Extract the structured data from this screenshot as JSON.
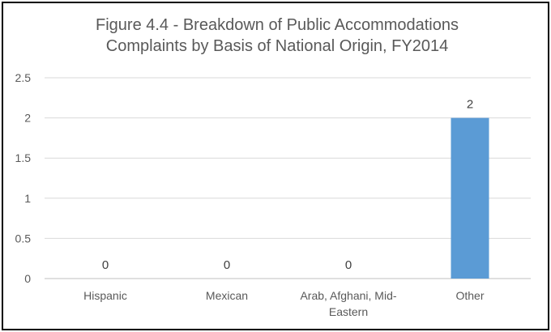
{
  "chart_data": {
    "type": "bar",
    "title": "Figure 4.4 - Breakdown of Public Accommodations Complaints by Basis of National Origin, FY2014",
    "title_lines": [
      "Figure 4.4 - Breakdown of Public Accommodations",
      "Complaints by Basis of National Origin, FY2014"
    ],
    "categories": [
      "Hispanic",
      "Mexican",
      "Arab, Afghani, Mid-Eastern",
      "Other"
    ],
    "category_lines": [
      [
        "Hispanic"
      ],
      [
        "Mexican"
      ],
      [
        "Arab, Afghani, Mid-",
        "Eastern"
      ],
      [
        "Other"
      ]
    ],
    "values": [
      0,
      0,
      0,
      2
    ],
    "data_labels": [
      "0",
      "0",
      "0",
      "2"
    ],
    "xlabel": "",
    "ylabel": "",
    "ylim": [
      0,
      2.5
    ],
    "yticks": [
      "0",
      "0.5",
      "1",
      "1.5",
      "2",
      "2.5"
    ],
    "grid": true,
    "bar_color": "#5B9BD5",
    "grid_color": "#D9D9D9",
    "text_color": "#595959"
  }
}
